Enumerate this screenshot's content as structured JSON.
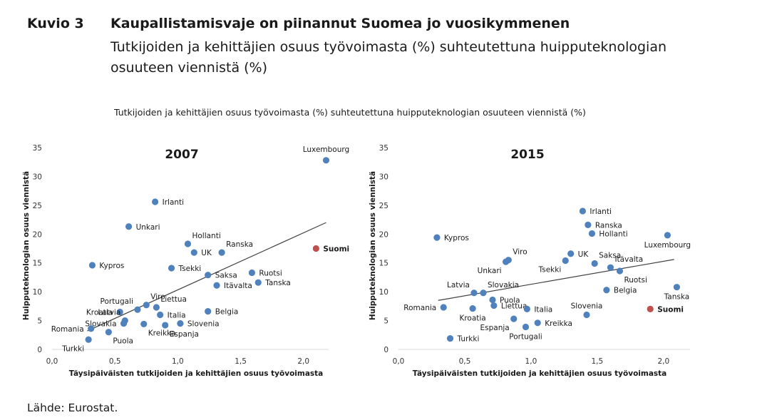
{
  "figure": {
    "label": "Kuvio 3",
    "title": "Kaupallistamisvaje on piinannut Suomea jo vuosikymmenen",
    "subtitle": "Tutkijoiden ja kehittäjien osuus työvoimasta (%) suhteutettuna huipputeknologian osuuteen viennistä (%)",
    "panel_heading": "Tutkijoiden ja kehittäjien osuus työvoimasta (%) suhteutettuna huipputeknologian osuuteen viennistä (%)",
    "source": "Lähde: Eurostat."
  },
  "colors": {
    "point": "#4f81bd",
    "highlight": "#c0504d",
    "trend": "#404040",
    "axis": "#d9d9d9"
  },
  "chart_data": [
    {
      "type": "scatter",
      "title": "2007",
      "xlabel": "Täysipäiväisten tutkijoiden ja kehittäjien osuus työvoimasta",
      "ylabel": "Huipputeknologian osuus viennistä",
      "xlim": [
        0,
        2.2
      ],
      "ylim": [
        0,
        35
      ],
      "xticks": [
        "0,0",
        "0,5",
        "1,0",
        "1,5",
        "2,0"
      ],
      "xtick_values": [
        0,
        0.5,
        1.0,
        1.5,
        2.0
      ],
      "yticks": [
        "0",
        "5",
        "10",
        "15",
        "20",
        "25",
        "30",
        "35"
      ],
      "ytick_values": [
        0,
        5,
        10,
        15,
        20,
        25,
        30,
        35
      ],
      "trendline": {
        "x": [
          0.28,
          2.18
        ],
        "y": [
          3.2,
          22.0
        ]
      },
      "points": [
        {
          "label": "Luxembourg",
          "x": 2.18,
          "y": 32.8,
          "pos": "tc"
        },
        {
          "label": "Irlanti",
          "x": 0.82,
          "y": 25.6,
          "pos": "r"
        },
        {
          "label": "Unkari",
          "x": 0.61,
          "y": 21.3,
          "pos": "r"
        },
        {
          "label": "Hollanti",
          "x": 1.08,
          "y": 18.3,
          "pos": "tr"
        },
        {
          "label": "Ranska",
          "x": 1.35,
          "y": 16.8,
          "pos": "tr"
        },
        {
          "label": "UK",
          "x": 1.13,
          "y": 16.8,
          "pos": "r"
        },
        {
          "label": "Suomi",
          "x": 2.1,
          "y": 17.5,
          "pos": "r",
          "highlight": true
        },
        {
          "label": "Kypros",
          "x": 0.32,
          "y": 14.6,
          "pos": "r"
        },
        {
          "label": "Tsekki",
          "x": 0.95,
          "y": 14.1,
          "pos": "r"
        },
        {
          "label": "Saksa",
          "x": 1.24,
          "y": 12.9,
          "pos": "r"
        },
        {
          "label": "Ruotsi",
          "x": 1.59,
          "y": 13.3,
          "pos": "r"
        },
        {
          "label": "Tanska",
          "x": 1.64,
          "y": 11.6,
          "pos": "r"
        },
        {
          "label": "Itävalta",
          "x": 1.31,
          "y": 11.1,
          "pos": "r"
        },
        {
          "label": "Viro",
          "x": 0.75,
          "y": 7.7,
          "pos": "tr"
        },
        {
          "label": "Portugali",
          "x": 0.68,
          "y": 6.9,
          "pos": "tl"
        },
        {
          "label": "Liettua",
          "x": 0.83,
          "y": 7.3,
          "pos": "tr"
        },
        {
          "label": "Italia",
          "x": 0.86,
          "y": 6.0,
          "pos": "r"
        },
        {
          "label": "Belgia",
          "x": 1.24,
          "y": 6.6,
          "pos": "r"
        },
        {
          "label": "Kroatia",
          "x": 0.54,
          "y": 6.5,
          "pos": "l"
        },
        {
          "label": "Latvia",
          "x": 0.58,
          "y": 5.0,
          "pos": "tl"
        },
        {
          "label": "Slovakia",
          "x": 0.57,
          "y": 4.5,
          "pos": "l"
        },
        {
          "label": "Kreikka",
          "x": 0.73,
          "y": 4.4,
          "pos": "br"
        },
        {
          "label": "Espanja",
          "x": 0.9,
          "y": 4.2,
          "pos": "br"
        },
        {
          "label": "Slovenia",
          "x": 1.02,
          "y": 4.5,
          "pos": "r"
        },
        {
          "label": "Romania",
          "x": 0.31,
          "y": 3.6,
          "pos": "l"
        },
        {
          "label": "Puola",
          "x": 0.45,
          "y": 3.0,
          "pos": "br"
        },
        {
          "label": "Turkki",
          "x": 0.29,
          "y": 1.7,
          "pos": "bl"
        }
      ]
    },
    {
      "type": "scatter",
      "title": "2015",
      "xlabel": "Täysipäiväisten tutkijoiden ja kehittäjien osuus työvoimasta",
      "ylabel": "Huipputeknologian osuus viennistä",
      "xlim": [
        0,
        2.2
      ],
      "ylim": [
        0,
        35
      ],
      "xticks": [
        "0,0",
        "0,5",
        "1,0",
        "1,5",
        "2,0"
      ],
      "xtick_values": [
        0,
        0.5,
        1.0,
        1.5,
        2.0
      ],
      "yticks": [
        "0",
        "5",
        "10",
        "15",
        "20",
        "25",
        "30",
        "35"
      ],
      "ytick_values": [
        0,
        5,
        10,
        15,
        20,
        25,
        30,
        35
      ],
      "trendline": {
        "x": [
          0.3,
          2.08
        ],
        "y": [
          8.5,
          15.6
        ]
      },
      "points": [
        {
          "label": "Irlanti",
          "x": 1.39,
          "y": 24.0,
          "pos": "r"
        },
        {
          "label": "Ranska",
          "x": 1.43,
          "y": 21.6,
          "pos": "r"
        },
        {
          "label": "Hollanti",
          "x": 1.46,
          "y": 20.1,
          "pos": "r"
        },
        {
          "label": "Luxembourg",
          "x": 2.03,
          "y": 19.8,
          "pos": "bc"
        },
        {
          "label": "Kypros",
          "x": 0.29,
          "y": 19.4,
          "pos": "r"
        },
        {
          "label": "Viro",
          "x": 0.83,
          "y": 15.5,
          "pos": "tr"
        },
        {
          "label": "Unkari",
          "x": 0.81,
          "y": 15.2,
          "pos": "bl"
        },
        {
          "label": "UK",
          "x": 1.3,
          "y": 16.6,
          "pos": "r"
        },
        {
          "label": "Saksa",
          "x": 1.48,
          "y": 14.9,
          "pos": "tr"
        },
        {
          "label": "Tsekki",
          "x": 1.26,
          "y": 15.4,
          "pos": "bl"
        },
        {
          "label": "Itävalta",
          "x": 1.6,
          "y": 14.2,
          "pos": "tr"
        },
        {
          "label": "Ruotsi",
          "x": 1.67,
          "y": 13.6,
          "pos": "br"
        },
        {
          "label": "Tanska",
          "x": 2.1,
          "y": 10.8,
          "pos": "bc"
        },
        {
          "label": "Belgia",
          "x": 1.57,
          "y": 10.3,
          "pos": "r"
        },
        {
          "label": "Latvia",
          "x": 0.57,
          "y": 9.8,
          "pos": "tl"
        },
        {
          "label": "Slovakia",
          "x": 0.64,
          "y": 9.8,
          "pos": "tr"
        },
        {
          "label": "Puola",
          "x": 0.71,
          "y": 8.6,
          "pos": "r"
        },
        {
          "label": "Liettua",
          "x": 0.72,
          "y": 7.6,
          "pos": "r"
        },
        {
          "label": "Romania",
          "x": 0.34,
          "y": 7.3,
          "pos": "l"
        },
        {
          "label": "Kroatia",
          "x": 0.56,
          "y": 7.1,
          "pos": "b"
        },
        {
          "label": "Italia",
          "x": 0.97,
          "y": 7.0,
          "pos": "r"
        },
        {
          "label": "Suomi",
          "x": 1.9,
          "y": 7.0,
          "pos": "r",
          "highlight": true
        },
        {
          "label": "Slovenia",
          "x": 1.42,
          "y": 6.0,
          "pos": "t"
        },
        {
          "label": "Espanja",
          "x": 0.87,
          "y": 5.3,
          "pos": "bl"
        },
        {
          "label": "Kreikka",
          "x": 1.05,
          "y": 4.6,
          "pos": "r"
        },
        {
          "label": "Portugali",
          "x": 0.96,
          "y": 3.9,
          "pos": "b"
        },
        {
          "label": "Turkki",
          "x": 0.39,
          "y": 1.9,
          "pos": "r"
        }
      ]
    }
  ]
}
